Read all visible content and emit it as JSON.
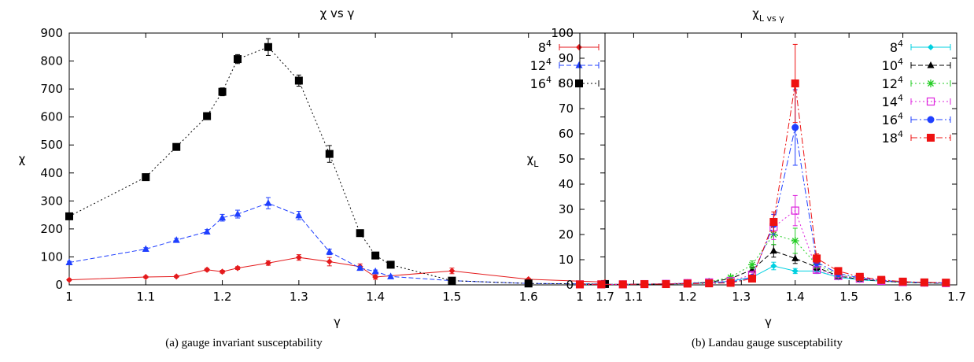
{
  "captions": {
    "a": "(a) gauge invariant susceptability",
    "b": "(b) Landau gauge susceptability"
  },
  "chart_data": [
    {
      "type": "line",
      "title": "χ vs γ",
      "xlabel": "γ",
      "ylabel": "χ",
      "xlim": [
        1.0,
        1.7
      ],
      "ylim": [
        0,
        900
      ],
      "xticks": [
        "1",
        "1.1",
        "1.2",
        "1.3",
        "1.4",
        "1.5",
        "1.6",
        "1.7"
      ],
      "yticks": [
        "0",
        "100",
        "200",
        "300",
        "400",
        "500",
        "600",
        "700",
        "800",
        "900"
      ],
      "legend_position": "top-right",
      "series": [
        {
          "name": "8^4",
          "color": "#e41a1c",
          "marker": "diamond",
          "dash": "solid",
          "x": [
            1.0,
            1.1,
            1.14,
            1.18,
            1.2,
            1.22,
            1.26,
            1.3,
            1.34,
            1.38,
            1.4,
            1.5,
            1.6,
            1.7
          ],
          "y": [
            18,
            28,
            30,
            54,
            47,
            60,
            78,
            98,
            83,
            65,
            28,
            50,
            20,
            10
          ],
          "err": [
            3,
            3,
            3,
            5,
            5,
            5,
            8,
            10,
            15,
            10,
            8,
            10,
            3,
            2
          ]
        },
        {
          "name": "12^4",
          "color": "#1f3fff",
          "marker": "triangle",
          "dash": "dashed",
          "x": [
            1.0,
            1.1,
            1.14,
            1.18,
            1.2,
            1.22,
            1.26,
            1.3,
            1.34,
            1.38,
            1.4,
            1.42,
            1.5,
            1.6,
            1.7
          ],
          "y": [
            80,
            128,
            160,
            190,
            240,
            253,
            292,
            248,
            118,
            60,
            48,
            30,
            15,
            5,
            3
          ],
          "err": [
            4,
            5,
            6,
            8,
            12,
            14,
            20,
            15,
            10,
            6,
            5,
            4,
            3,
            2,
            1
          ]
        },
        {
          "name": "16^4",
          "color": "#000000",
          "marker": "square",
          "dash": "dotted",
          "x": [
            1.0,
            1.1,
            1.14,
            1.18,
            1.2,
            1.22,
            1.26,
            1.3,
            1.34,
            1.38,
            1.4,
            1.42,
            1.5,
            1.6,
            1.7
          ],
          "y": [
            245,
            385,
            493,
            603,
            690,
            807,
            850,
            730,
            468,
            185,
            105,
            72,
            15,
            5,
            3
          ],
          "err": [
            6,
            8,
            10,
            12,
            14,
            16,
            30,
            20,
            30,
            10,
            8,
            6,
            3,
            2,
            1
          ]
        }
      ]
    },
    {
      "type": "line",
      "title": "χ_L vs γ",
      "xlabel": "γ",
      "ylabel": "χ_L",
      "xlim": [
        1.0,
        1.7
      ],
      "ylim": [
        0,
        100
      ],
      "xticks": [
        "1",
        "1.1",
        "1.2",
        "1.3",
        "1.4",
        "1.5",
        "1.6",
        "1.7"
      ],
      "yticks": [
        "0",
        "10",
        "20",
        "30",
        "40",
        "50",
        "60",
        "70",
        "80",
        "90",
        "100"
      ],
      "legend_position": "top-right",
      "series": [
        {
          "name": "8^4",
          "color": "#00d0e0",
          "marker": "diamond",
          "dash": "solid",
          "x": [
            1.0,
            1.04,
            1.08,
            1.12,
            1.16,
            1.2,
            1.24,
            1.28,
            1.32,
            1.36,
            1.4,
            1.44,
            1.48,
            1.52,
            1.56,
            1.6,
            1.64,
            1.68
          ],
          "y": [
            0.2,
            0.2,
            0.2,
            0.3,
            0.3,
            0.5,
            0.8,
            1.5,
            3.0,
            7.5,
            5.5,
            5.5,
            3.0,
            2.0,
            1.5,
            1.0,
            0.8,
            0.6
          ],
          "err": [
            0,
            0,
            0,
            0,
            0,
            0,
            0.2,
            0.3,
            0.5,
            1.5,
            1.0,
            1.0,
            0.5,
            0.3,
            0.2,
            0.2,
            0.1,
            0.1
          ]
        },
        {
          "name": "10^4",
          "color": "#000000",
          "marker": "triangle",
          "dash": "dashed",
          "x": [
            1.0,
            1.04,
            1.08,
            1.12,
            1.16,
            1.2,
            1.24,
            1.28,
            1.32,
            1.36,
            1.4,
            1.44,
            1.48,
            1.52,
            1.56,
            1.6,
            1.64,
            1.68
          ],
          "y": [
            0.2,
            0.2,
            0.2,
            0.3,
            0.4,
            0.6,
            1.0,
            2.5,
            6.0,
            13.5,
            10.5,
            7.0,
            3.5,
            2.2,
            1.5,
            1.0,
            0.8,
            0.6
          ],
          "err": [
            0,
            0,
            0,
            0,
            0,
            0.1,
            0.2,
            0.5,
            1.0,
            2.5,
            2.0,
            1.2,
            0.6,
            0.4,
            0.3,
            0.2,
            0.1,
            0.1
          ]
        },
        {
          "name": "12^4",
          "color": "#22cc22",
          "marker": "star",
          "dash": "dotted",
          "x": [
            1.0,
            1.04,
            1.08,
            1.12,
            1.16,
            1.2,
            1.24,
            1.28,
            1.32,
            1.36,
            1.4,
            1.44,
            1.48,
            1.52,
            1.56,
            1.6,
            1.64,
            1.68
          ],
          "y": [
            0.2,
            0.2,
            0.2,
            0.3,
            0.4,
            0.7,
            1.2,
            3.0,
            8.0,
            20.0,
            17.5,
            8.0,
            4.0,
            2.5,
            1.6,
            1.1,
            0.9,
            0.7
          ],
          "err": [
            0,
            0,
            0,
            0,
            0,
            0.1,
            0.2,
            0.5,
            1.5,
            4.0,
            5.0,
            1.5,
            0.7,
            0.4,
            0.3,
            0.2,
            0.1,
            0.1
          ]
        },
        {
          "name": "14^4",
          "color": "#dd22dd",
          "marker": "open-square",
          "dash": "dotted",
          "x": [
            1.0,
            1.04,
            1.08,
            1.12,
            1.16,
            1.2,
            1.24,
            1.28,
            1.32,
            1.36,
            1.4,
            1.44,
            1.48,
            1.52,
            1.56,
            1.6,
            1.64,
            1.68
          ],
          "y": [
            0.2,
            0.2,
            0.2,
            0.3,
            0.4,
            0.7,
            1.0,
            1.5,
            4.0,
            23.0,
            29.5,
            6.0,
            3.5,
            2.5,
            1.6,
            1.1,
            0.9,
            0.7
          ],
          "err": [
            0,
            0,
            0,
            0,
            0,
            0.1,
            0.2,
            0.3,
            1.0,
            5.0,
            6.0,
            1.0,
            0.6,
            0.4,
            0.3,
            0.2,
            0.1,
            0.1
          ]
        },
        {
          "name": "16^4",
          "color": "#1f3fff",
          "marker": "circle",
          "dash": "dashdot",
          "x": [
            1.0,
            1.04,
            1.08,
            1.12,
            1.16,
            1.2,
            1.24,
            1.28,
            1.32,
            1.36,
            1.4,
            1.44,
            1.48,
            1.52,
            1.56,
            1.6,
            1.64,
            1.68
          ],
          "y": [
            0.2,
            0.2,
            0.2,
            0.3,
            0.4,
            0.6,
            0.8,
            1.0,
            3.0,
            24.0,
            62.5,
            9.0,
            4.5,
            2.8,
            1.8,
            1.2,
            1.0,
            0.8
          ],
          "err": [
            0,
            0,
            0,
            0,
            0,
            0.1,
            0.1,
            0.2,
            0.8,
            4.0,
            15.0,
            1.5,
            0.8,
            0.5,
            0.3,
            0.2,
            0.1,
            0.1
          ]
        },
        {
          "name": "18^4",
          "color": "#ee1111",
          "marker": "square",
          "dash": "dashdot",
          "x": [
            1.0,
            1.04,
            1.08,
            1.12,
            1.16,
            1.2,
            1.24,
            1.28,
            1.32,
            1.36,
            1.4,
            1.44,
            1.48,
            1.52,
            1.56,
            1.6,
            1.64,
            1.68
          ],
          "y": [
            0.2,
            0.2,
            0.2,
            0.3,
            0.3,
            0.5,
            0.6,
            0.8,
            2.5,
            25.0,
            80.0,
            10.5,
            5.5,
            3.2,
            2.0,
            1.3,
            1.0,
            0.9
          ],
          "err": [
            0,
            0,
            0,
            0,
            0,
            0.1,
            0.1,
            0.2,
            0.6,
            4.0,
            15.5,
            1.8,
            0.9,
            0.5,
            0.3,
            0.2,
            0.1,
            0.1
          ]
        }
      ]
    }
  ]
}
